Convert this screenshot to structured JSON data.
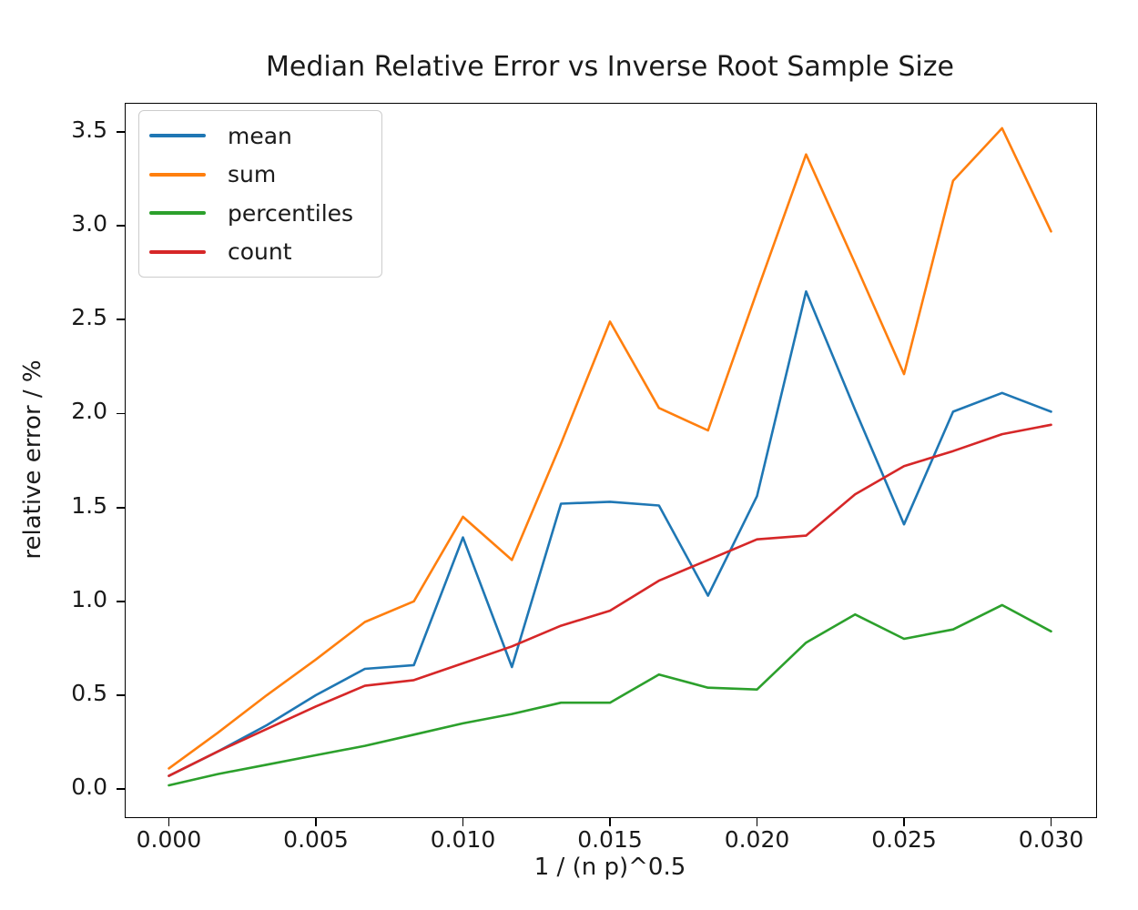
{
  "title": "Median Relative Error vs Inverse Root Sample Size",
  "axes": {
    "x": {
      "label": "1 / (n p)^0.5",
      "ticks": [
        {
          "value": 0.0,
          "label": "0.000"
        },
        {
          "value": 0.005,
          "label": "0.005"
        },
        {
          "value": 0.01,
          "label": "0.010"
        },
        {
          "value": 0.015,
          "label": "0.015"
        },
        {
          "value": 0.02,
          "label": "0.020"
        },
        {
          "value": 0.025,
          "label": "0.025"
        },
        {
          "value": 0.03,
          "label": "0.030"
        }
      ]
    },
    "y": {
      "label": "relative error / %",
      "ticks": [
        {
          "value": 0.0,
          "label": "0.0"
        },
        {
          "value": 0.5,
          "label": "0.5"
        },
        {
          "value": 1.0,
          "label": "1.0"
        },
        {
          "value": 1.5,
          "label": "1.5"
        },
        {
          "value": 2.0,
          "label": "2.0"
        },
        {
          "value": 2.5,
          "label": "2.5"
        },
        {
          "value": 3.0,
          "label": "3.0"
        },
        {
          "value": 3.5,
          "label": "3.5"
        }
      ]
    }
  },
  "chart_data": {
    "type": "line",
    "title": "Median Relative Error vs Inverse Root Sample Size",
    "xlabel": "1 / (n p)^0.5",
    "ylabel": "relative error / %",
    "xlim": [
      -0.0015,
      0.0315
    ],
    "ylim": [
      -0.145,
      3.655
    ],
    "grid": false,
    "legend_position": "upper left",
    "x": [
      0.0,
      0.001667,
      0.003333,
      0.005,
      0.006667,
      0.008333,
      0.01,
      0.011667,
      0.013333,
      0.015,
      0.016667,
      0.018333,
      0.02,
      0.021667,
      0.023333,
      0.025,
      0.026667,
      0.028333,
      0.03
    ],
    "series": [
      {
        "name": "mean",
        "color": "#1f77b4",
        "values": [
          0.07,
          0.2,
          0.34,
          0.5,
          0.64,
          0.66,
          1.34,
          0.65,
          1.52,
          1.53,
          1.51,
          1.03,
          1.56,
          2.65,
          2.02,
          1.41,
          2.01,
          2.11,
          2.01
        ]
      },
      {
        "name": "sum",
        "color": "#ff7f0e",
        "values": [
          0.11,
          0.3,
          0.5,
          0.69,
          0.89,
          1.0,
          1.45,
          1.22,
          1.84,
          2.49,
          2.03,
          1.91,
          2.65,
          3.38,
          2.8,
          2.21,
          3.24,
          3.52,
          2.97
        ]
      },
      {
        "name": "percentiles",
        "color": "#2ca02c",
        "values": [
          0.02,
          0.08,
          0.13,
          0.18,
          0.23,
          0.29,
          0.35,
          0.4,
          0.46,
          0.46,
          0.61,
          0.54,
          0.53,
          0.78,
          0.93,
          0.8,
          0.85,
          0.98,
          0.84
        ]
      },
      {
        "name": "count",
        "color": "#d62728",
        "values": [
          0.07,
          0.2,
          0.32,
          0.44,
          0.55,
          0.58,
          0.67,
          0.76,
          0.87,
          0.95,
          1.11,
          1.22,
          1.33,
          1.35,
          1.57,
          1.72,
          1.8,
          1.89,
          1.94
        ]
      }
    ]
  }
}
